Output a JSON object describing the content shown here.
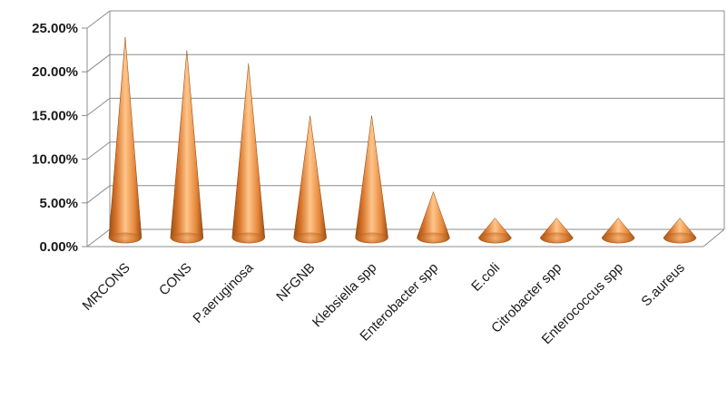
{
  "chart_data": {
    "type": "bar",
    "shape": "cone",
    "style": "3d",
    "title": "",
    "xlabel": "",
    "ylabel": "",
    "categories": [
      "MRCONS",
      "CONS",
      "P.aeruginosa",
      "NFGNB",
      "Klebsiella spp",
      "Enterobacter spp",
      "E.coli",
      "Citrobacter spp",
      "Enterococcus spp",
      "S.aureus"
    ],
    "values": [
      22.0,
      20.5,
      19.0,
      13.0,
      13.0,
      4.3,
      1.3,
      1.3,
      1.3,
      1.3
    ],
    "y_unit": "%",
    "ylim": [
      0,
      25
    ],
    "yticks": [
      "0.00%",
      "5.00%",
      "10.00%",
      "15.00%",
      "20.00%",
      "25.00%"
    ],
    "grid": true,
    "legend": "none",
    "colors": {
      "cone_light": "#ffc58a",
      "cone_mid": "#e7893c",
      "cone_dark": "#9a4d12",
      "grid": "#8c8c8c"
    }
  }
}
